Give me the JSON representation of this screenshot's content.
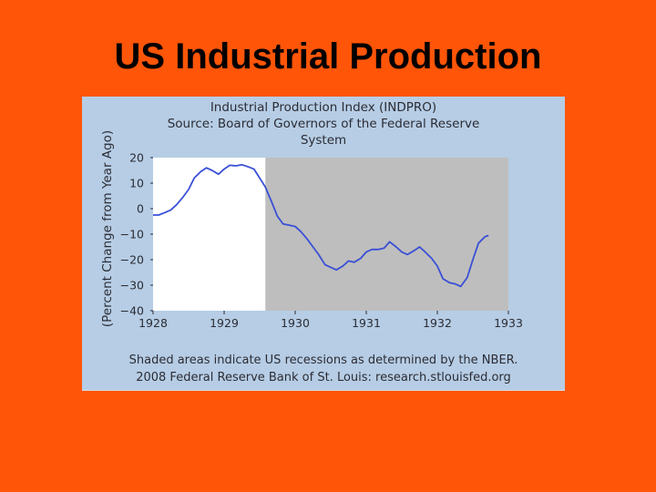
{
  "slide": {
    "title": "US Industrial Production"
  },
  "chart_data": {
    "type": "line",
    "title_lines": [
      "Industrial Production Index (INDPRO)",
      "Source: Board of Governors of the Federal Reserve",
      "System"
    ],
    "xlabel": "",
    "ylabel": "(Percent Change from Year Ago)",
    "xlim": [
      1928,
      1933
    ],
    "ylim": [
      -40,
      20
    ],
    "x_ticks": [
      1928,
      1929,
      1930,
      1931,
      1932,
      1933
    ],
    "y_ticks": [
      20,
      10,
      0,
      -10,
      -20,
      -30,
      -40
    ],
    "y_tick_labels": [
      "20",
      "10",
      "0",
      "−10",
      "−20",
      "−30",
      "−40"
    ],
    "recession_shading": [
      {
        "start": 1929.58,
        "end": 1933.0
      }
    ],
    "shading_color": "#BEBEBE",
    "line_color": "#3A4FD6",
    "series": [
      {
        "name": "INDPRO",
        "points": [
          [
            1928.0,
            -2.5
          ],
          [
            1928.08,
            -2.5
          ],
          [
            1928.17,
            -1.5
          ],
          [
            1928.25,
            -0.5
          ],
          [
            1928.33,
            1.5
          ],
          [
            1928.42,
            4.5
          ],
          [
            1928.5,
            7.5
          ],
          [
            1928.58,
            12.0
          ],
          [
            1928.67,
            14.5
          ],
          [
            1928.75,
            16.0
          ],
          [
            1928.83,
            15.0
          ],
          [
            1928.92,
            13.5
          ],
          [
            1929.0,
            15.5
          ],
          [
            1929.08,
            17.0
          ],
          [
            1929.17,
            16.8
          ],
          [
            1929.25,
            17.2
          ],
          [
            1929.33,
            16.5
          ],
          [
            1929.42,
            15.5
          ],
          [
            1929.5,
            12.0
          ],
          [
            1929.58,
            8.5
          ],
          [
            1929.67,
            2.5
          ],
          [
            1929.75,
            -3.0
          ],
          [
            1929.83,
            -6.0
          ],
          [
            1929.92,
            -6.5
          ],
          [
            1930.0,
            -7.0
          ],
          [
            1930.08,
            -9.0
          ],
          [
            1930.17,
            -12.0
          ],
          [
            1930.25,
            -15.0
          ],
          [
            1930.33,
            -18.0
          ],
          [
            1930.42,
            -22.0
          ],
          [
            1930.5,
            -23.0
          ],
          [
            1930.58,
            -24.0
          ],
          [
            1930.67,
            -22.5
          ],
          [
            1930.75,
            -20.5
          ],
          [
            1930.83,
            -21.0
          ],
          [
            1930.92,
            -19.5
          ],
          [
            1931.0,
            -17.0
          ],
          [
            1931.08,
            -16.0
          ],
          [
            1931.17,
            -16.0
          ],
          [
            1931.25,
            -15.5
          ],
          [
            1931.33,
            -13.0
          ],
          [
            1931.42,
            -15.0
          ],
          [
            1931.5,
            -17.0
          ],
          [
            1931.58,
            -18.0
          ],
          [
            1931.67,
            -16.5
          ],
          [
            1931.75,
            -15.0
          ],
          [
            1931.83,
            -17.0
          ],
          [
            1931.92,
            -19.5
          ],
          [
            1932.0,
            -22.5
          ],
          [
            1932.08,
            -27.5
          ],
          [
            1932.17,
            -29.0
          ],
          [
            1932.25,
            -29.5
          ],
          [
            1932.33,
            -30.5
          ],
          [
            1932.42,
            -27.0
          ],
          [
            1932.5,
            -20.0
          ],
          [
            1932.58,
            -13.5
          ],
          [
            1932.67,
            -11.0
          ],
          [
            1932.72,
            -10.5
          ]
        ]
      }
    ],
    "footnote_lines": [
      "Shaded areas indicate US recessions as determined by the NBER.",
      "2008 Federal Reserve Bank of St. Louis: research.stlouisfed.org"
    ]
  }
}
